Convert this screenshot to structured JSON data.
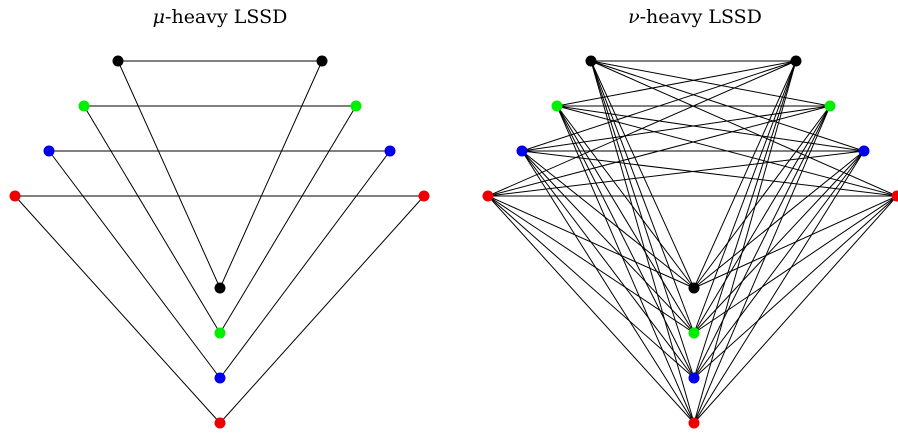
{
  "diagrams": [
    {
      "id": "mu-heavy",
      "title_symbol": "μ",
      "title_rest": "-heavy LSSD",
      "level_colors": [
        "#000000",
        "#00ee00",
        "#0000ee",
        "#ee0000"
      ],
      "edge_mode": "matching"
    },
    {
      "id": "nu-heavy",
      "title_symbol": "ν",
      "title_rest": "-heavy LSSD",
      "level_colors": [
        "#000000",
        "#00ee00",
        "#0000ee",
        "#ee0000"
      ],
      "edge_mode": "complete"
    }
  ]
}
